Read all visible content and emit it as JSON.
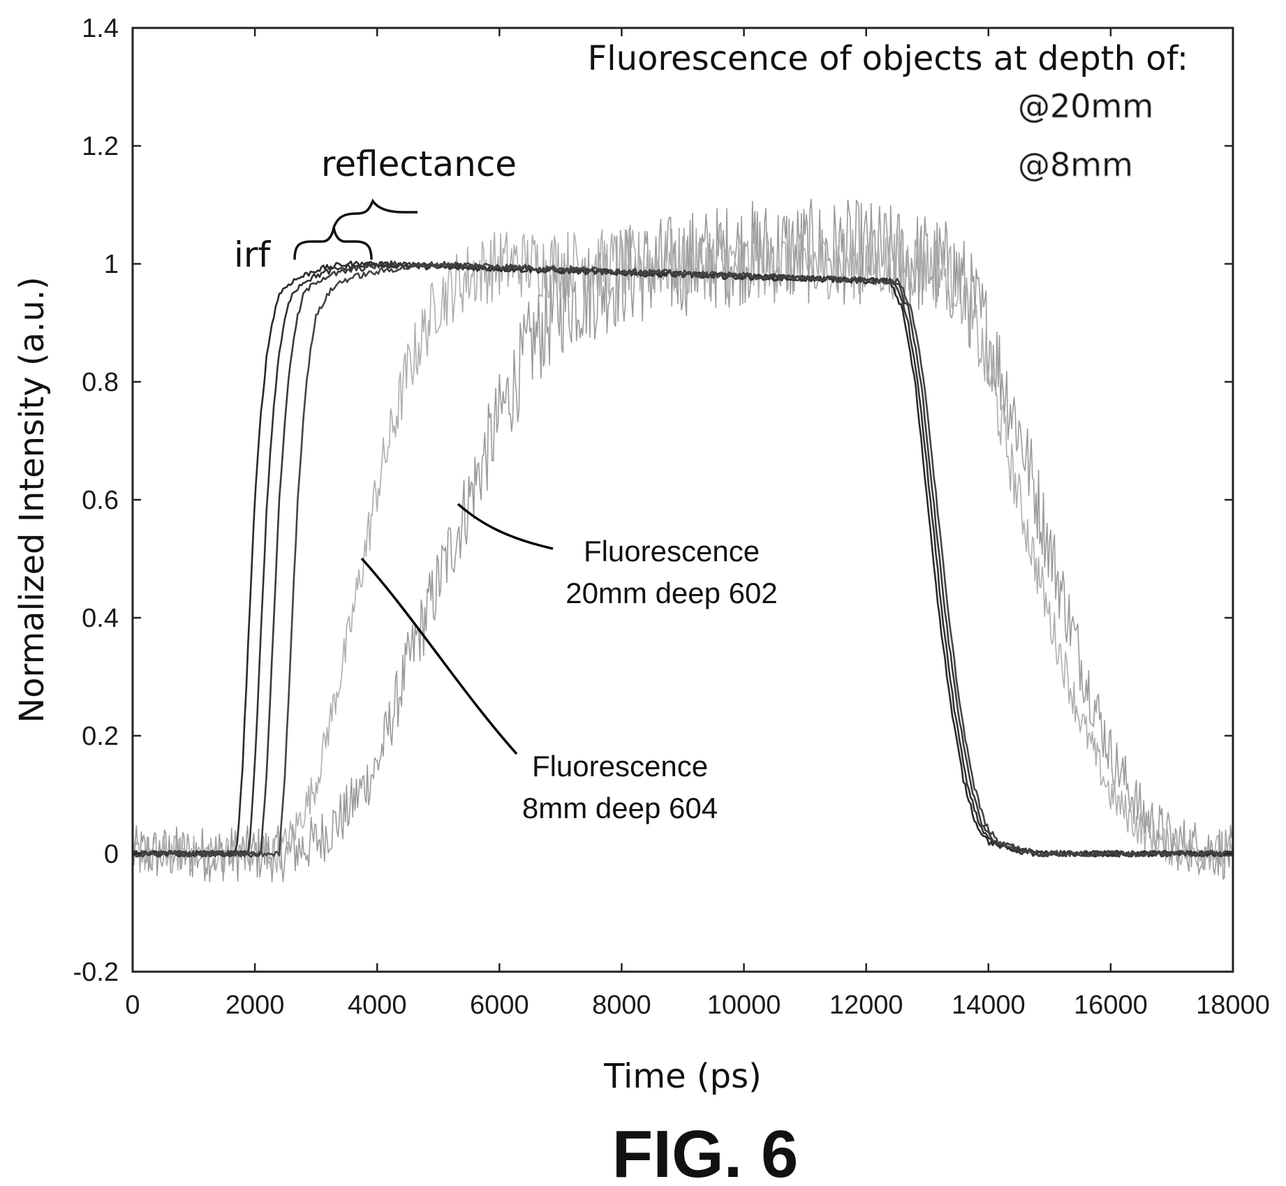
{
  "chart_data": {
    "type": "line",
    "title": "",
    "xlabel": "Time (ps)",
    "ylabel": "Normalized Intensity (a.u.)",
    "xlim": [
      0,
      18000
    ],
    "ylim": [
      -0.2,
      1.4
    ],
    "xticks": [
      0,
      2000,
      4000,
      6000,
      8000,
      10000,
      12000,
      14000,
      16000,
      18000
    ],
    "yticks": [
      -0.2,
      0,
      0.2,
      0.4,
      0.6,
      0.8,
      1,
      1.2,
      1.4
    ],
    "xtick_labels": [
      "0",
      "2000",
      "4000",
      "6000",
      "8000",
      "10000",
      "12000",
      "14000",
      "16000",
      "18000"
    ],
    "ytick_labels": [
      "-0.2",
      "0",
      "0.2",
      "0.4",
      "0.6",
      "0.8",
      "1",
      "1.2",
      "1.4"
    ],
    "grid": false,
    "legend": {
      "title": "Fluorescence of objects at depth of:",
      "position": "top-right",
      "entries": [
        "@20mm",
        "@8mm"
      ]
    },
    "series": [
      {
        "color": "#2a2a2a",
        "noise": 0.005,
        "x": [
          0,
          1700,
          1800,
          1900,
          2000,
          2100,
          2200,
          2300,
          2400,
          2600,
          2800,
          3000,
          3500,
          12400,
          12600,
          12800,
          13000,
          13200,
          13400,
          13600,
          13800,
          14000,
          14300,
          14700,
          15500,
          18000
        ],
        "y": [
          0,
          0,
          0.15,
          0.38,
          0.6,
          0.75,
          0.85,
          0.91,
          0.95,
          0.97,
          0.98,
          0.99,
          1.0,
          0.97,
          0.92,
          0.8,
          0.6,
          0.4,
          0.24,
          0.12,
          0.05,
          0.02,
          0.01,
          0.0,
          0.0,
          0.0
        ]
      },
      {
        "color": "#333333",
        "noise": 0.005,
        "x": [
          0,
          1900,
          2000,
          2100,
          2200,
          2300,
          2400,
          2500,
          2600,
          2800,
          3000,
          3300,
          3800,
          12450,
          12650,
          12850,
          13050,
          13250,
          13450,
          13650,
          13850,
          14050,
          14350,
          14750,
          15500,
          18000
        ],
        "y": [
          0,
          0,
          0.15,
          0.38,
          0.6,
          0.75,
          0.85,
          0.91,
          0.95,
          0.97,
          0.98,
          0.99,
          1.0,
          0.97,
          0.92,
          0.8,
          0.6,
          0.4,
          0.24,
          0.12,
          0.05,
          0.02,
          0.01,
          0.0,
          0.0,
          0.0
        ]
      },
      {
        "color": "#3a3a3a",
        "noise": 0.005,
        "x": [
          0,
          2100,
          2200,
          2300,
          2400,
          2500,
          2600,
          2700,
          2800,
          3000,
          3200,
          3600,
          4200,
          12500,
          12700,
          12900,
          13100,
          13300,
          13500,
          13700,
          13900,
          14100,
          14400,
          14800,
          15500,
          18000
        ],
        "y": [
          0,
          0,
          0.15,
          0.38,
          0.6,
          0.75,
          0.85,
          0.91,
          0.95,
          0.97,
          0.98,
          0.99,
          1.0,
          0.97,
          0.92,
          0.8,
          0.6,
          0.4,
          0.24,
          0.12,
          0.05,
          0.02,
          0.01,
          0.0,
          0.0,
          0.0
        ]
      },
      {
        "color": "#444444",
        "noise": 0.005,
        "x": [
          0,
          2400,
          2500,
          2600,
          2700,
          2800,
          2900,
          3000,
          3200,
          3400,
          3700,
          4200,
          5000,
          12550,
          12750,
          12950,
          13150,
          13350,
          13550,
          13750,
          13950,
          14150,
          14450,
          14850,
          15500,
          18000
        ],
        "y": [
          0,
          0,
          0.15,
          0.38,
          0.6,
          0.75,
          0.85,
          0.91,
          0.95,
          0.97,
          0.98,
          0.99,
          1.0,
          0.97,
          0.92,
          0.8,
          0.6,
          0.4,
          0.24,
          0.12,
          0.05,
          0.02,
          0.01,
          0.0,
          0.0,
          0.0
        ]
      },
      {
        "name": "@20mm",
        "color": "#9a9a9a",
        "noise": 0.09,
        "x": [
          0,
          2500,
          3000,
          3500,
          4000,
          4500,
          5000,
          5500,
          6000,
          6500,
          7000,
          8000,
          10000,
          12000,
          13000,
          13500,
          14000,
          14500,
          15000,
          15500,
          16000,
          16500,
          17000,
          18000
        ],
        "y": [
          0,
          0,
          0.02,
          0.07,
          0.15,
          0.32,
          0.46,
          0.6,
          0.74,
          0.86,
          0.93,
          0.98,
          1.02,
          1.02,
          1.0,
          0.98,
          0.88,
          0.72,
          0.52,
          0.33,
          0.17,
          0.07,
          0.02,
          0.0
        ]
      },
      {
        "name": "@8mm",
        "color": "#aeaeae",
        "noise": 0.06,
        "x": [
          0,
          2400,
          2700,
          3000,
          3500,
          4000,
          4500,
          5000,
          5500,
          6000,
          7000,
          8000,
          10000,
          12000,
          13000,
          13500,
          14000,
          14500,
          15000,
          15500,
          16000,
          16500,
          17000,
          18000
        ],
        "y": [
          0,
          0,
          0.05,
          0.12,
          0.35,
          0.62,
          0.82,
          0.94,
          0.98,
          1.0,
          1.0,
          1.0,
          1.0,
          1.0,
          1.0,
          0.97,
          0.82,
          0.6,
          0.4,
          0.23,
          0.1,
          0.04,
          0.01,
          0.0
        ]
      }
    ],
    "annotations": [
      {
        "text": "reflectance",
        "x": 4750,
        "y": 1.16
      },
      {
        "text": "irf",
        "x": 1900,
        "y": 1.0
      },
      {
        "text_lines": [
          "Fluorescence",
          "20mm deep 602"
        ],
        "x": 10400,
        "y": 0.51
      },
      {
        "text_lines": [
          "Fluorescence",
          "8mm deep 604"
        ],
        "x": 10400,
        "y": 0.17
      }
    ]
  },
  "figure": {
    "label": "FIG. 6"
  },
  "legend_colors": {
    "20mm": "#a8a8a8",
    "8mm": "#b8b8b8"
  }
}
